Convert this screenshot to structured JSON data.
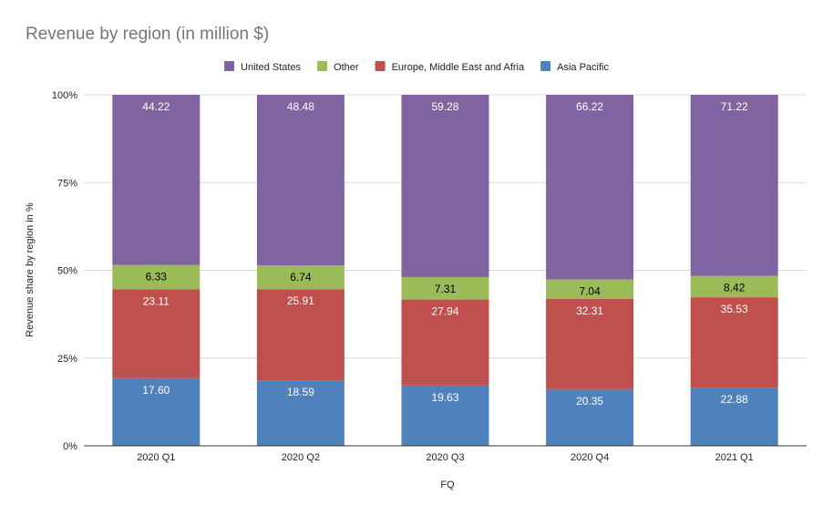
{
  "chart_data": {
    "type": "bar",
    "stacked": "percent",
    "title": "Revenue by region (in million $)",
    "xlabel": "FQ",
    "ylabel": "Revenue share by region in %",
    "categories": [
      "2020 Q1",
      "2020 Q2",
      "2020 Q3",
      "2020 Q4",
      "2021 Q1"
    ],
    "yticks": [
      "0%",
      "25%",
      "50%",
      "75%",
      "100%"
    ],
    "ylim": [
      0,
      100
    ],
    "grid": true,
    "legend_position": "top",
    "series": [
      {
        "name": "Asia Pacific",
        "color": "#4f81bd",
        "values": [
          17.6,
          18.59,
          19.63,
          20.35,
          22.88
        ],
        "labels": [
          "17.60",
          "18.59",
          "19.63",
          "20.35",
          "22.88"
        ],
        "label_color": "#ffffff"
      },
      {
        "name": "Europe, Middle East and Afria",
        "color": "#c0504d",
        "values": [
          23.11,
          25.91,
          27.94,
          32.31,
          35.53
        ],
        "labels": [
          "23.11",
          "25.91",
          "27.94",
          "32.31",
          "35.53"
        ],
        "label_color": "#ffffff"
      },
      {
        "name": "Other",
        "color": "#9bbb59",
        "values": [
          6.33,
          6.74,
          7.31,
          7.04,
          8.42
        ],
        "labels": [
          "6.33",
          "6.74",
          "7.31",
          "7.04",
          "8.42"
        ],
        "label_color": "#000000"
      },
      {
        "name": "United States",
        "color": "#8064a2",
        "values": [
          44.22,
          48.48,
          59.28,
          66.22,
          71.22
        ],
        "labels": [
          "44.22",
          "48.48",
          "59.28",
          "66.22",
          "71.22"
        ],
        "label_color": "#ffffff"
      }
    ],
    "legend_order": [
      "United States",
      "Other",
      "Europe, Middle East and Afria",
      "Asia Pacific"
    ]
  }
}
